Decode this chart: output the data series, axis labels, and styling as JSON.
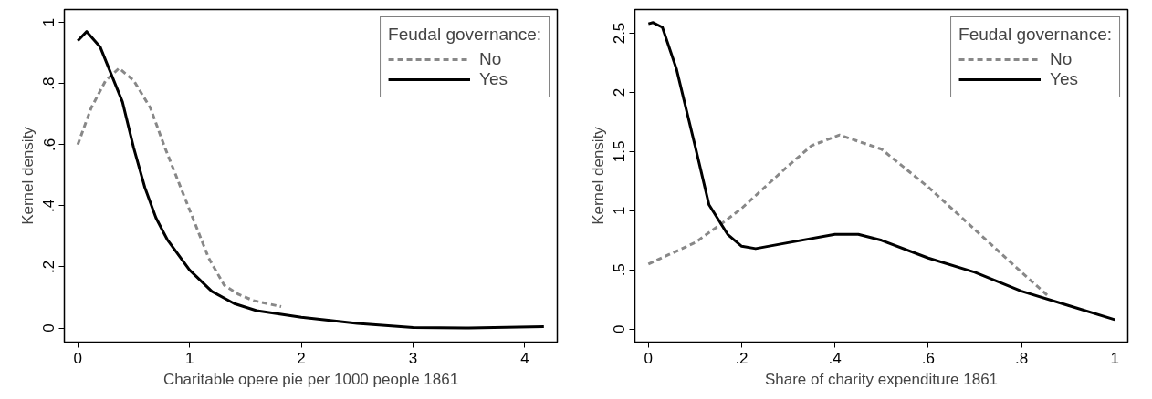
{
  "chart_data": [
    {
      "type": "line",
      "xlabel": "Charitable opere pie per 1000 people 1861",
      "ylabel": "Kernel density",
      "legend_title": "Feudal governance:",
      "legend": "top right",
      "grid": false,
      "xlim": [
        -0.12,
        4.29
      ],
      "ylim": [
        -0.046,
        1.042
      ],
      "xticks": [
        0,
        1,
        2,
        3,
        4
      ],
      "yticks": [
        0,
        {
          "value": 0.2,
          "label": ".2"
        },
        {
          "value": 0.4,
          "label": ".4"
        },
        {
          "value": 0.6,
          "label": ".6"
        },
        {
          "value": 0.8,
          "label": ".8"
        },
        1
      ],
      "series": [
        {
          "name": "No",
          "color": "#888888",
          "line_style": "dashed",
          "x": [
            0,
            0.12,
            0.25,
            0.37,
            0.5,
            0.65,
            0.78,
            0.91,
            1.04,
            1.17,
            1.31,
            1.44,
            1.57,
            1.82
          ],
          "values": [
            0.6,
            0.72,
            0.81,
            0.85,
            0.81,
            0.72,
            0.59,
            0.47,
            0.35,
            0.23,
            0.14,
            0.11,
            0.09,
            0.07
          ]
        },
        {
          "name": "Yes",
          "color": "#000000",
          "line_style": "solid",
          "x": [
            0,
            0.08,
            0.2,
            0.3,
            0.4,
            0.5,
            0.6,
            0.7,
            0.8,
            1.0,
            1.2,
            1.4,
            1.6,
            2.0,
            2.5,
            3.0,
            3.5,
            4.17
          ],
          "values": [
            0.94,
            0.97,
            0.92,
            0.83,
            0.74,
            0.59,
            0.46,
            0.36,
            0.29,
            0.19,
            0.12,
            0.08,
            0.057,
            0.035,
            0.015,
            0.002,
            0.0,
            0.005
          ]
        }
      ]
    },
    {
      "type": "line",
      "xlabel": "Share of charity expenditure 1861",
      "ylabel": "Kernel density",
      "legend_title": "Feudal governance:",
      "legend": "top right",
      "grid": false,
      "xlim": [
        -0.029,
        1.028
      ],
      "ylim": [
        -0.11,
        2.7
      ],
      "xticks": [
        0,
        {
          "value": 0.2,
          "label": ".2"
        },
        {
          "value": 0.4,
          "label": ".4"
        },
        {
          "value": 0.6,
          "label": ".6"
        },
        {
          "value": 0.8,
          "label": ".8"
        },
        1
      ],
      "yticks": [
        0,
        {
          "value": 0.5,
          "label": ".5"
        },
        1,
        1.5,
        2,
        2.5
      ],
      "series": [
        {
          "name": "No",
          "color": "#888888",
          "line_style": "dashed",
          "x": [
            0,
            0.1,
            0.16,
            0.2,
            0.3,
            0.35,
            0.41,
            0.5,
            0.6,
            0.7,
            0.8,
            0.86
          ],
          "values": [
            0.55,
            0.73,
            0.9,
            1.02,
            1.38,
            1.55,
            1.64,
            1.52,
            1.2,
            0.84,
            0.48,
            0.27
          ]
        },
        {
          "name": "Yes",
          "color": "#000000",
          "line_style": "solid",
          "x": [
            0,
            0.01,
            0.03,
            0.06,
            0.1,
            0.13,
            0.17,
            0.2,
            0.23,
            0.3,
            0.4,
            0.45,
            0.5,
            0.6,
            0.7,
            0.8,
            0.9,
            1.0
          ],
          "values": [
            2.58,
            2.59,
            2.55,
            2.2,
            1.55,
            1.05,
            0.8,
            0.7,
            0.68,
            0.73,
            0.8,
            0.8,
            0.75,
            0.6,
            0.48,
            0.32,
            0.2,
            0.08
          ]
        }
      ]
    }
  ]
}
